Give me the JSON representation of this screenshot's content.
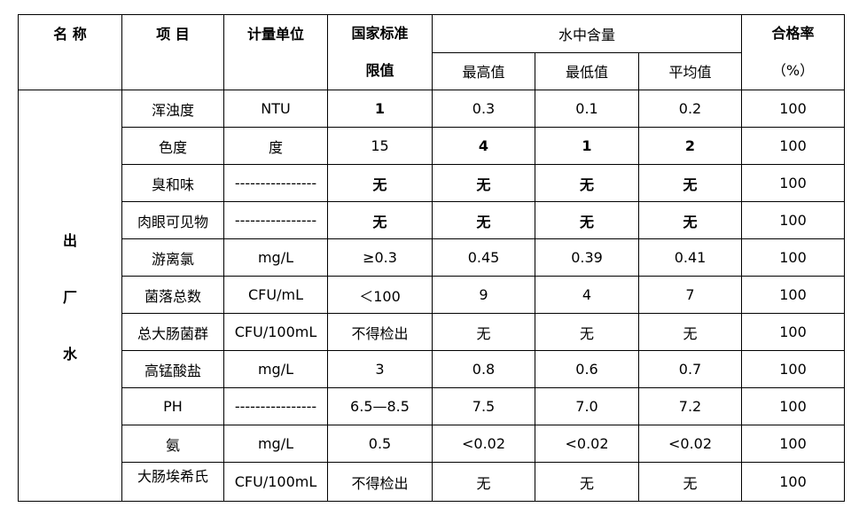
{
  "header": {
    "name": "名 称",
    "item": "项 目",
    "unit": "计量单位",
    "standard": [
      "国家标准",
      "限值"
    ],
    "content": "水中含量",
    "content_cols": [
      "最高值",
      "最低值",
      "平均值"
    ],
    "rate": [
      "合格率",
      "（%）"
    ]
  },
  "side_label": [
    "出",
    "厂",
    "水"
  ],
  "rows": [
    [
      "浑浊度",
      "NTU",
      "1",
      "0.3",
      "0.1",
      "0.2",
      "100"
    ],
    [
      "色度",
      "度",
      "15",
      "4",
      "1",
      "2",
      "100"
    ],
    [
      "臭和味",
      "----------------",
      "无",
      "无",
      "无",
      "无",
      "100"
    ],
    [
      "肉眼可见物",
      "----------------",
      "无",
      "无",
      "无",
      "无",
      "100"
    ],
    [
      "游离氯",
      "mg/L",
      "≥0.3",
      "0.45",
      "0.39",
      "0.41",
      "100"
    ],
    [
      "菌落总数",
      "CFU/mL",
      "＜100",
      "9",
      "4",
      "7",
      "100"
    ],
    [
      "总大肠菌群",
      "CFU/100mL",
      "不得检出",
      "无",
      "无",
      "无",
      "100"
    ],
    [
      "高锰酸盐",
      "mg/L",
      "3",
      "0.8",
      "0.6",
      "0.7",
      "100"
    ],
    [
      "PH",
      "----------------",
      "6.5—8.5",
      "7.5",
      "7.0",
      "7.2",
      "100"
    ],
    [
      "氨",
      "mg/L",
      "0.5",
      "<0.02",
      "<0.02",
      "<0.02",
      "100"
    ],
    [
      "大肠埃希氏",
      "CFU/100mL",
      "不得检出",
      "无",
      "无",
      "无",
      "100"
    ]
  ]
}
